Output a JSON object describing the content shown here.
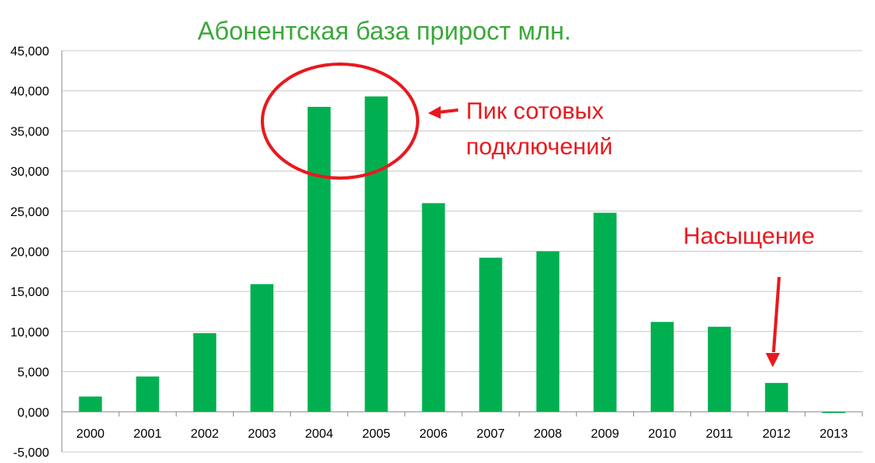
{
  "chart_data": {
    "type": "bar",
    "title": "Абонентская база прирост млн.",
    "xlabel": "",
    "ylabel": "",
    "ylim": [
      -5000,
      45000
    ],
    "yticks": [
      -5000,
      0,
      5000,
      10000,
      15000,
      20000,
      25000,
      30000,
      35000,
      40000,
      45000
    ],
    "ytick_labels": [
      "-5,000",
      "0,000",
      "5,000",
      "10,000",
      "15,000",
      "20,000",
      "25,000",
      "30,000",
      "35,000",
      "40,000",
      "45,000"
    ],
    "categories": [
      "2000",
      "2001",
      "2002",
      "2003",
      "2004",
      "2005",
      "2006",
      "2007",
      "2008",
      "2009",
      "2010",
      "2011",
      "2012",
      "2013"
    ],
    "values": [
      1900,
      4400,
      9800,
      15900,
      38000,
      39300,
      26000,
      19200,
      20000,
      24800,
      11200,
      10600,
      3600,
      -100
    ],
    "grid": true,
    "legend": "none",
    "colors": {
      "bar": "#00b050",
      "title": "#3aa83a",
      "annotation": "#e8191e",
      "grid": "#c8c8c8",
      "axis": "#888888"
    },
    "annotations": {
      "peak_line1": "Пик сотовых",
      "peak_line2": "подключений",
      "saturation": "Насыщение"
    }
  }
}
